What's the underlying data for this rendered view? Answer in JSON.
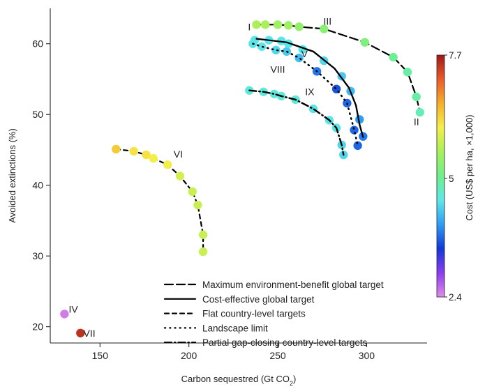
{
  "chart_data": {
    "type": "scatter",
    "xlabel": "Carbon sequestred (Gt CO",
    "xlabel_sub": "2",
    "xlabel_end": ")",
    "ylabel": "Avoided extinctions (%)",
    "xlim": [
      122,
      334
    ],
    "ylim": [
      17.7,
      65
    ],
    "xticks": [
      150,
      200,
      250,
      300
    ],
    "yticks": [
      20,
      30,
      40,
      50,
      60
    ],
    "colorbar": {
      "label": "Cost (US$ per ha, ×1,000)",
      "min": 2.4,
      "max": 7.7,
      "ticks": [
        2.4,
        5,
        7.7
      ],
      "colors": [
        "#e08ce8",
        "#8a3cf0",
        "#1238d6",
        "#2f9cf5",
        "#5ee8e8",
        "#6ef08c",
        "#a8f05a",
        "#f5ee4a",
        "#f5b02a",
        "#ec5a2a",
        "#a01818"
      ]
    },
    "legend": [
      {
        "label": "Maximum environment-benefit global target",
        "style": "longdash"
      },
      {
        "label": "Cost-effective global target",
        "style": "solid"
      },
      {
        "label": "Flat country-level targets",
        "style": "dash"
      },
      {
        "label": "Landscape limit",
        "style": "dot"
      },
      {
        "label": "Partial gap-closing country-level targets",
        "style": "dashdot"
      }
    ],
    "series": [
      {
        "id": "III",
        "style": "longdash",
        "points": [
          [
            238,
            62.7
          ],
          [
            243,
            62.7
          ],
          [
            250,
            62.7
          ],
          [
            256,
            62.6
          ],
          [
            262,
            62.4
          ],
          [
            276,
            62.1
          ],
          [
            299,
            60.2
          ],
          [
            315,
            58.1
          ],
          [
            323,
            56.0
          ],
          [
            328,
            52.5
          ],
          [
            330,
            50.3
          ]
        ],
        "costs": [
          5.6,
          5.6,
          5.5,
          5.5,
          5.4,
          5.3,
          5.2,
          5.0,
          4.9,
          4.9,
          4.8
        ]
      },
      {
        "id": "V",
        "style": "solid",
        "points": [
          [
            238,
            60.7
          ],
          [
            255,
            60.2
          ],
          [
            270,
            58.9
          ],
          [
            282,
            56.5
          ],
          [
            290,
            53.8
          ],
          [
            294,
            51.3
          ],
          [
            296,
            48.6
          ],
          [
            298,
            46.8
          ]
        ],
        "costs": null
      },
      {
        "id": "VIII",
        "style": "dot",
        "points": [
          [
            236,
            60.0
          ],
          [
            241,
            59.6
          ],
          [
            249,
            59.1
          ],
          [
            255,
            58.9
          ],
          [
            262,
            58.0
          ],
          [
            272,
            56.1
          ],
          [
            283,
            53.6
          ],
          [
            289,
            51.6
          ],
          [
            293,
            47.8
          ],
          [
            295,
            45.6
          ]
        ],
        "costs": [
          4.5,
          4.5,
          4.4,
          4.3,
          4.2,
          3.8,
          3.6,
          3.7,
          3.7,
          3.7
        ]
      },
      {
        "id": "",
        "style": "none",
        "points": [
          [
            237,
            60.5
          ],
          [
            245,
            60.5
          ],
          [
            252,
            60.4
          ],
          [
            256,
            60.0
          ],
          [
            264,
            59.2
          ],
          [
            276,
            57.6
          ],
          [
            286,
            55.4
          ],
          [
            291,
            53.3
          ],
          [
            296,
            49.3
          ],
          [
            298,
            46.9
          ]
        ],
        "costs": [
          4.5,
          4.5,
          4.5,
          4.5,
          4.5,
          4.4,
          4.3,
          4.2,
          4.0,
          3.8
        ]
      },
      {
        "id": "IX",
        "style": "dashdot",
        "points": [
          [
            234,
            53.4
          ],
          [
            242,
            53.2
          ],
          [
            248,
            52.9
          ],
          [
            252,
            52.6
          ],
          [
            260,
            52.1
          ],
          [
            270,
            50.8
          ],
          [
            279,
            49.2
          ],
          [
            283,
            48.1
          ],
          [
            286,
            45.7
          ],
          [
            287,
            44.3
          ]
        ],
        "costs": [
          4.6,
          4.6,
          4.6,
          4.6,
          4.6,
          4.5,
          4.5,
          4.5,
          4.4,
          4.4
        ]
      },
      {
        "id": "VI",
        "style": "dash",
        "points": [
          [
            159,
            45.1
          ],
          [
            169,
            44.8
          ],
          [
            176,
            44.3
          ],
          [
            180,
            43.8
          ],
          [
            188,
            42.9
          ],
          [
            195,
            41.3
          ],
          [
            202,
            39.1
          ],
          [
            205,
            37.2
          ],
          [
            208,
            33.0
          ],
          [
            208,
            30.6
          ]
        ],
        "costs": [
          6.4,
          6.2,
          6.2,
          6.1,
          6.1,
          5.9,
          5.8,
          5.8,
          5.8,
          5.8
        ]
      },
      {
        "id": "IV",
        "style": "none",
        "points": [
          [
            130,
            21.8
          ]
        ],
        "costs": [
          2.5
        ]
      },
      {
        "id": "VII",
        "style": "none",
        "points": [
          [
            139,
            19.1
          ]
        ],
        "costs": [
          7.5
        ]
      }
    ],
    "labels": [
      {
        "text": "I",
        "x": 234,
        "y": 62.4
      },
      {
        "text": "III",
        "x": 278,
        "y": 63.2
      },
      {
        "text": "V",
        "x": 265,
        "y": 58.6
      },
      {
        "text": "VIII",
        "x": 250,
        "y": 56.4
      },
      {
        "text": "IX",
        "x": 268,
        "y": 53.2
      },
      {
        "text": "II",
        "x": 328,
        "y": 49.0
      },
      {
        "text": "VI",
        "x": 194,
        "y": 44.4
      },
      {
        "text": "IV",
        "x": 135,
        "y": 22.5
      },
      {
        "text": "VII",
        "x": 144,
        "y": 19.1
      }
    ]
  }
}
